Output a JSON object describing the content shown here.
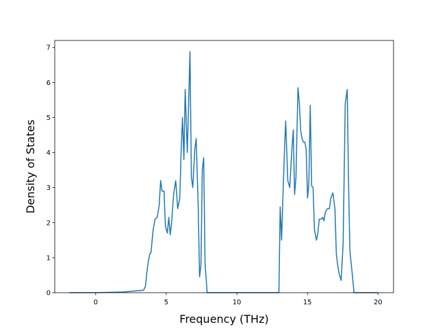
{
  "chart_data": {
    "type": "line",
    "xlabel": "Frequency (THz)",
    "ylabel": "Density of States",
    "x": [
      -1.85,
      0,
      1.94,
      3.4,
      3.53,
      3.63,
      3.73,
      3.83,
      3.92,
      4.07,
      4.21,
      4.36,
      4.5,
      4.6,
      4.7,
      4.84,
      4.94,
      5.08,
      5.18,
      5.28,
      5.38,
      5.52,
      5.67,
      5.81,
      5.96,
      6.05,
      6.15,
      6.25,
      6.34,
      6.49,
      6.59,
      6.68,
      6.78,
      6.88,
      7.02,
      7.12,
      7.26,
      7.36,
      7.46,
      7.55,
      7.65,
      7.75,
      7.9,
      12.98,
      13.07,
      13.17,
      13.27,
      13.37,
      13.46,
      13.61,
      13.75,
      13.9,
      14.0,
      14.09,
      14.19,
      14.33,
      14.43,
      14.53,
      14.62,
      14.72,
      14.82,
      14.91,
      15.01,
      15.1,
      15.2,
      15.3,
      15.4,
      15.5,
      15.64,
      15.74,
      15.84,
      15.98,
      16.08,
      16.17,
      16.27,
      16.42,
      16.56,
      16.66,
      16.8,
      16.95,
      17.05,
      17.14,
      17.24,
      17.39,
      17.53,
      17.68,
      17.82,
      17.92,
      18.01,
      18.16,
      18.3,
      20.0
    ],
    "series": [
      {
        "color": "#1f77b4",
        "values": [
          0,
          0,
          0.02,
          0.07,
          0.2,
          0.6,
          0.9,
          1.1,
          1.15,
          1.8,
          2.1,
          2.15,
          2.5,
          3.2,
          2.9,
          2.9,
          1.9,
          1.7,
          2.15,
          1.65,
          2.0,
          2.8,
          3.2,
          2.4,
          2.7,
          4.0,
          5.0,
          3.8,
          5.8,
          4.0,
          5.5,
          6.88,
          3.3,
          3.0,
          4.1,
          4.4,
          2.5,
          0.45,
          0.8,
          3.5,
          3.85,
          0.8,
          0,
          0,
          2.45,
          1.5,
          2.8,
          4.0,
          4.9,
          3.2,
          3.0,
          4.1,
          4.65,
          2.8,
          3.3,
          5.85,
          5.4,
          4.6,
          4.4,
          4.3,
          4.3,
          4.1,
          2.7,
          3.1,
          5.35,
          3.05,
          3.0,
          1.8,
          1.5,
          1.7,
          2.1,
          2.1,
          2.15,
          2.05,
          2.3,
          2.4,
          2.4,
          2.7,
          2.85,
          2.4,
          1.1,
          0.8,
          0.55,
          0.35,
          1.4,
          5.4,
          5.8,
          3.0,
          1.2,
          0.6,
          0,
          0
        ]
      }
    ],
    "xlim": [
      -2.9,
      21.1
    ],
    "ylim": [
      0,
      7.2
    ],
    "xticks": [
      0,
      5,
      10,
      15,
      20
    ],
    "yticks": [
      0,
      1,
      2,
      3,
      4,
      5,
      6,
      7
    ]
  }
}
